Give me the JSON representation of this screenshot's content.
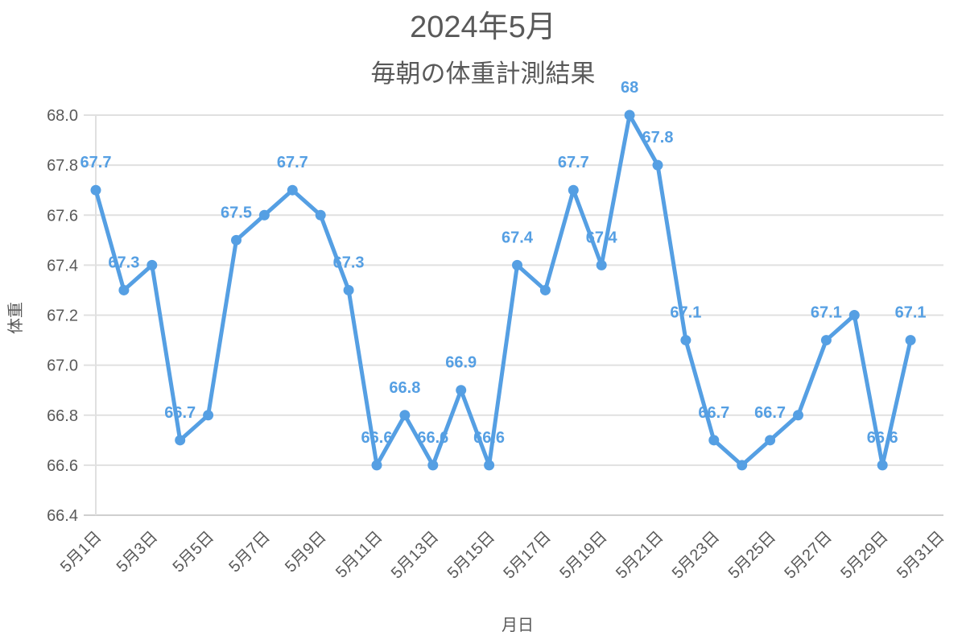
{
  "chart_data": {
    "type": "line",
    "title": "2024年5月",
    "subtitle": "毎朝の体重計測結果",
    "xlabel": "月日",
    "ylabel": "体重",
    "ylim": [
      66.4,
      68.0
    ],
    "yticks": [
      "66.4",
      "66.6",
      "66.8",
      "67.0",
      "67.2",
      "67.4",
      "67.6",
      "67.8",
      "68.0"
    ],
    "grid": true,
    "legend": "none",
    "color": "#559FE3",
    "x_tick_labels": [
      "5月1日",
      "5月3日",
      "5月5日",
      "5月7日",
      "5月9日",
      "5月11日",
      "5月13日",
      "5月15日",
      "5月17日",
      "5月19日",
      "5月21日",
      "5月23日",
      "5月25日",
      "5月27日",
      "5月29日",
      "5月31日"
    ],
    "categories": [
      "5月1日",
      "5月2日",
      "5月3日",
      "5月4日",
      "5月5日",
      "5月6日",
      "5月7日",
      "5月8日",
      "5月9日",
      "5月10日",
      "5月11日",
      "5月12日",
      "5月13日",
      "5月14日",
      "5月15日",
      "5月16日",
      "5月17日",
      "5月18日",
      "5月19日",
      "5月20日",
      "5月21日",
      "5月22日",
      "5月23日",
      "5月24日",
      "5月25日",
      "5月26日",
      "5月27日",
      "5月28日",
      "5月29日",
      "5月30日",
      "5月31日"
    ],
    "series": [
      {
        "name": "体重",
        "values": [
          67.7,
          67.3,
          67.4,
          66.7,
          66.8,
          67.5,
          67.6,
          67.7,
          67.6,
          67.3,
          66.6,
          66.8,
          66.6,
          66.9,
          66.6,
          67.4,
          67.3,
          67.7,
          67.4,
          68.0,
          67.8,
          67.1,
          66.7,
          66.6,
          66.7,
          66.8,
          67.1,
          67.2,
          66.6,
          67.1,
          null
        ]
      }
    ],
    "data_labels": [
      {
        "day": 1,
        "text": "67.7"
      },
      {
        "day": 2,
        "text": "67.3"
      },
      {
        "day": 4,
        "text": "66.7"
      },
      {
        "day": 6,
        "text": "67.5"
      },
      {
        "day": 8,
        "text": "67.7"
      },
      {
        "day": 10,
        "text": "67.3"
      },
      {
        "day": 11,
        "text": "66.6"
      },
      {
        "day": 12,
        "text": "66.8"
      },
      {
        "day": 13,
        "text": "66.6"
      },
      {
        "day": 14,
        "text": "66.9"
      },
      {
        "day": 15,
        "text": "66.6"
      },
      {
        "day": 16,
        "text": "67.4"
      },
      {
        "day": 18,
        "text": "67.7"
      },
      {
        "day": 19,
        "text": "67.4"
      },
      {
        "day": 20,
        "text": "68"
      },
      {
        "day": 21,
        "text": "67.8"
      },
      {
        "day": 22,
        "text": "67.1"
      },
      {
        "day": 23,
        "text": "66.7"
      },
      {
        "day": 25,
        "text": "66.7"
      },
      {
        "day": 27,
        "text": "67.1"
      },
      {
        "day": 29,
        "text": "66.6"
      },
      {
        "day": 30,
        "text": "67.1"
      }
    ]
  }
}
